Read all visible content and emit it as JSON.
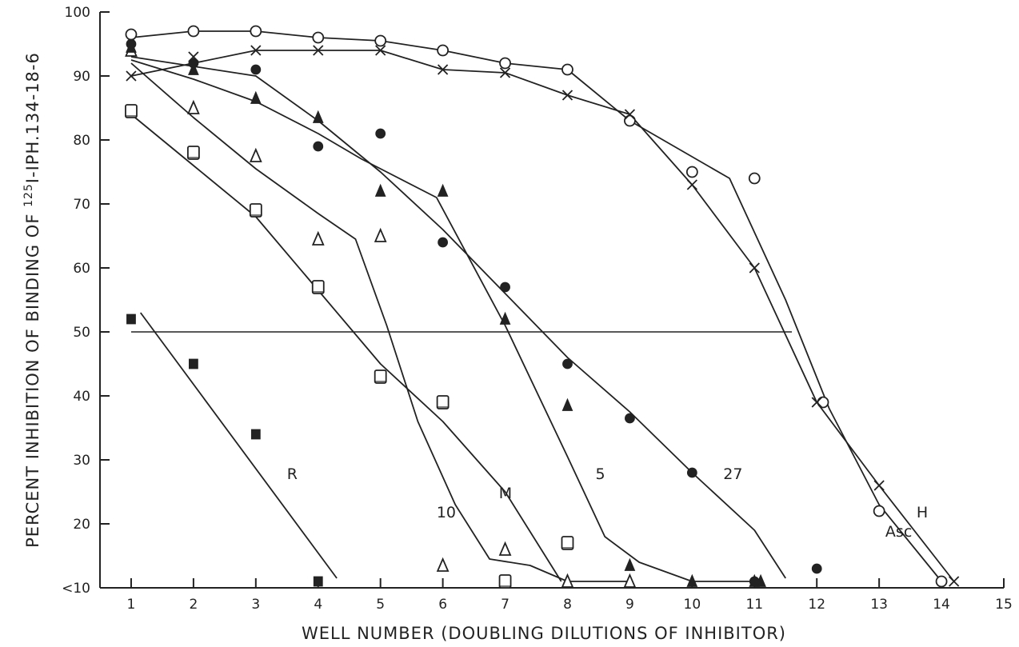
{
  "chart_data": {
    "type": "scatter",
    "xlabel": "WELL NUMBER (DOUBLING DILUTIONS OF INHIBITOR)",
    "ylabel": {
      "prefix": "PERCENT INHIBITION OF BINDING OF ",
      "superscript": "125",
      "suffix": "I-IPH.134-18-6"
    },
    "xlim": [
      0.5,
      15
    ],
    "ylim": [
      10,
      100
    ],
    "x_ticks": [
      1,
      2,
      3,
      4,
      5,
      6,
      7,
      8,
      9,
      10,
      11,
      12,
      13,
      14,
      15
    ],
    "y_ticks": [
      {
        "value": 10,
        "label": "<10"
      },
      {
        "value": 20,
        "label": "20"
      },
      {
        "value": 30,
        "label": "30"
      },
      {
        "value": 40,
        "label": "40"
      },
      {
        "value": 50,
        "label": "50"
      },
      {
        "value": 60,
        "label": "60"
      },
      {
        "value": 70,
        "label": "70"
      },
      {
        "value": 80,
        "label": "80"
      },
      {
        "value": 90,
        "label": "90"
      },
      {
        "value": 100,
        "label": "100"
      }
    ],
    "reference_line": {
      "y": 50,
      "x_range": [
        1,
        11.6
      ]
    },
    "series": [
      {
        "name": "R",
        "marker": "filled-square",
        "points": [
          [
            1,
            52
          ],
          [
            2,
            45
          ],
          [
            3,
            34
          ],
          [
            4,
            11
          ]
        ],
        "fit": [
          [
            1.15,
            53
          ],
          [
            4.3,
            11.5
          ]
        ],
        "label_at": [
          3.5,
          27
        ]
      },
      {
        "name": "10",
        "marker": "open-triangle",
        "points": [
          [
            1,
            94
          ],
          [
            2,
            85
          ],
          [
            3,
            77.5
          ],
          [
            4,
            64.5
          ],
          [
            5,
            65
          ],
          [
            6,
            13.5
          ],
          [
            7,
            16
          ],
          [
            8,
            11
          ],
          [
            9,
            11
          ]
        ],
        "fit": [
          [
            1,
            92
          ],
          [
            2,
            83.5
          ],
          [
            3,
            75.5
          ],
          [
            4,
            68.5
          ],
          [
            4.6,
            64.5
          ],
          [
            5.1,
            51
          ],
          [
            5.6,
            36
          ],
          [
            6.2,
            23
          ],
          [
            6.75,
            14.5
          ],
          [
            7.4,
            13.5
          ],
          [
            8,
            11
          ],
          [
            9,
            11
          ]
        ],
        "label_at": [
          5.9,
          21
        ]
      },
      {
        "name": "M",
        "marker": "open-square",
        "points": [
          [
            1,
            84.5
          ],
          [
            2,
            78
          ],
          [
            3,
            69
          ],
          [
            4,
            57
          ],
          [
            5,
            43
          ],
          [
            6,
            39
          ],
          [
            7,
            11
          ],
          [
            8,
            17
          ]
        ],
        "fit": [
          [
            1,
            84
          ],
          [
            2,
            76
          ],
          [
            3,
            68
          ],
          [
            4,
            56.5
          ],
          [
            5,
            45
          ],
          [
            6,
            36
          ],
          [
            7,
            25
          ],
          [
            7.9,
            11
          ]
        ],
        "label_at": [
          6.9,
          24
        ]
      },
      {
        "name": "5",
        "marker": "filled-triangle",
        "points": [
          [
            1,
            94.5
          ],
          [
            2,
            91
          ],
          [
            3,
            86.5
          ],
          [
            4,
            83.5
          ],
          [
            5,
            72
          ],
          [
            6,
            72
          ],
          [
            7,
            52
          ],
          [
            8,
            38.5
          ],
          [
            9,
            13.5
          ],
          [
            10,
            11
          ],
          [
            11,
            11
          ],
          [
            11.1,
            11
          ]
        ],
        "fit": [
          [
            1,
            92.5
          ],
          [
            2,
            89.5
          ],
          [
            3,
            86
          ],
          [
            4,
            81
          ],
          [
            4.7,
            77
          ],
          [
            5.9,
            71
          ],
          [
            7,
            51
          ],
          [
            8,
            30.5
          ],
          [
            8.6,
            18
          ],
          [
            9.15,
            14
          ],
          [
            10,
            11
          ],
          [
            11,
            11
          ]
        ],
        "label_at": [
          8.45,
          27
        ]
      },
      {
        "name": "27",
        "marker": "filled-circle",
        "points": [
          [
            1,
            95
          ],
          [
            2,
            92
          ],
          [
            3,
            91
          ],
          [
            4,
            79
          ],
          [
            5,
            81
          ],
          [
            6,
            64
          ],
          [
            7,
            57
          ],
          [
            8,
            45
          ],
          [
            9,
            36.5
          ],
          [
            10,
            28
          ],
          [
            11,
            11
          ],
          [
            12,
            13
          ]
        ],
        "fit": [
          [
            1,
            93
          ],
          [
            3,
            90
          ],
          [
            4,
            83
          ],
          [
            5,
            75
          ],
          [
            6,
            66
          ],
          [
            7,
            56
          ],
          [
            8,
            46
          ],
          [
            9,
            37.5
          ],
          [
            10,
            28
          ],
          [
            11,
            19
          ],
          [
            11.5,
            11.5
          ]
        ],
        "label_at": [
          10.5,
          27
        ]
      },
      {
        "name": "Asc",
        "marker": "open-circle",
        "points": [
          [
            1,
            96.5
          ],
          [
            2,
            97
          ],
          [
            3,
            97
          ],
          [
            4,
            96
          ],
          [
            5,
            95.5
          ],
          [
            6,
            94
          ],
          [
            7,
            92
          ],
          [
            8,
            91
          ],
          [
            9,
            83
          ],
          [
            10,
            75
          ],
          [
            11,
            74
          ],
          [
            12.1,
            39
          ],
          [
            13,
            22
          ],
          [
            14,
            11
          ]
        ],
        "fit": [
          [
            1,
            96
          ],
          [
            2,
            97
          ],
          [
            3,
            97
          ],
          [
            4,
            96
          ],
          [
            5,
            95.5
          ],
          [
            6,
            94
          ],
          [
            7,
            92
          ],
          [
            8,
            91
          ],
          [
            9,
            83
          ],
          [
            10.6,
            74
          ],
          [
            11.5,
            55
          ],
          [
            12.2,
            38
          ],
          [
            13,
            23
          ],
          [
            14,
            11
          ]
        ],
        "label_at": [
          13.1,
          18
        ]
      },
      {
        "name": "H",
        "marker": "cross",
        "points": [
          [
            1,
            90
          ],
          [
            2,
            93
          ],
          [
            3,
            94
          ],
          [
            4,
            94
          ],
          [
            5,
            94
          ],
          [
            6,
            91
          ],
          [
            7,
            90.5
          ],
          [
            8,
            87
          ],
          [
            9,
            84
          ],
          [
            10,
            73
          ],
          [
            11,
            60
          ],
          [
            12,
            39
          ],
          [
            13,
            26
          ],
          [
            14.2,
            11
          ]
        ],
        "fit": [
          [
            1,
            90
          ],
          [
            3,
            94
          ],
          [
            4,
            94
          ],
          [
            5,
            94
          ],
          [
            6,
            91
          ],
          [
            7,
            90.5
          ],
          [
            8,
            87
          ],
          [
            9,
            84
          ],
          [
            10,
            73
          ],
          [
            11,
            60
          ],
          [
            12,
            39
          ],
          [
            13,
            26
          ],
          [
            14.2,
            11
          ]
        ],
        "label_at": [
          13.6,
          21
        ]
      }
    ]
  }
}
